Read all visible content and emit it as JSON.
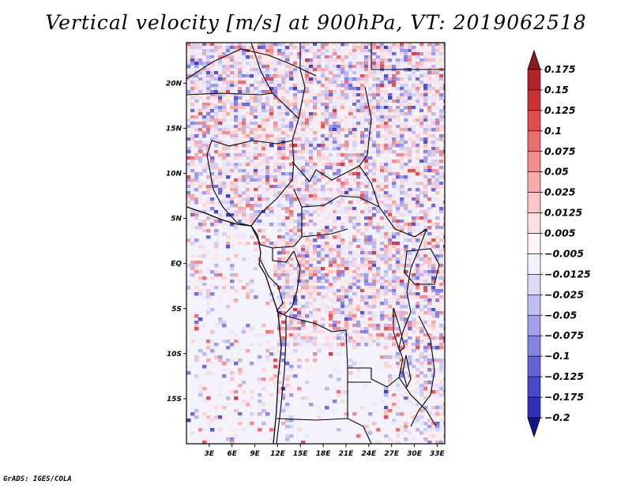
{
  "title": "Vertical velocity [m/s] at 900hPa, VT: 2019062518",
  "credit": "GrADS: IGES/COLA",
  "map": {
    "projection": "latlon",
    "lon_range": [
      0,
      34
    ],
    "lat_range": [
      -20,
      24.5
    ],
    "lat_ticks": [
      {
        "value": 20,
        "label": "20N"
      },
      {
        "value": 15,
        "label": "15N"
      },
      {
        "value": 10,
        "label": "10N"
      },
      {
        "value": 5,
        "label": "5N"
      },
      {
        "value": 0,
        "label": "EQ"
      },
      {
        "value": -5,
        "label": "5S"
      },
      {
        "value": -10,
        "label": "10S"
      },
      {
        "value": -15,
        "label": "15S"
      }
    ],
    "lon_ticks": [
      {
        "value": 3,
        "label": "3E"
      },
      {
        "value": 6,
        "label": "6E"
      },
      {
        "value": 9,
        "label": "9E"
      },
      {
        "value": 12,
        "label": "12E"
      },
      {
        "value": 15,
        "label": "15E"
      },
      {
        "value": 18,
        "label": "18E"
      },
      {
        "value": 21,
        "label": "21E"
      },
      {
        "value": 24,
        "label": "24E"
      },
      {
        "value": 27,
        "label": "27E"
      },
      {
        "value": 30,
        "label": "30E"
      },
      {
        "value": 33,
        "label": "33E"
      }
    ]
  },
  "colorbar": {
    "levels": [
      {
        "label": "0.175",
        "color": "#a51e24"
      },
      {
        "label": "0.15",
        "color": "#c0272d"
      },
      {
        "label": "0.125",
        "color": "#d83c3c"
      },
      {
        "label": "0.1",
        "color": "#e65d5d"
      },
      {
        "label": "0.075",
        "color": "#ef7e7e"
      },
      {
        "label": "0.05",
        "color": "#f39c9c"
      },
      {
        "label": "0.025",
        "color": "#f8baba"
      },
      {
        "label": "0.0125",
        "color": "#fbd4d4"
      },
      {
        "label": "0.005",
        "color": "#fde9e9"
      },
      {
        "label": "−0.005",
        "color": "#ffffff"
      },
      {
        "label": "−0.0125",
        "color": "#e6e6fb"
      },
      {
        "label": "−0.025",
        "color": "#ccccf5"
      },
      {
        "label": "−0.05",
        "color": "#b0b0ef"
      },
      {
        "label": "−0.075",
        "color": "#9191e6"
      },
      {
        "label": "−0.1",
        "color": "#7272dc"
      },
      {
        "label": "−0.125",
        "color": "#5656d2"
      },
      {
        "label": "−0.175",
        "color": "#3b3bc4"
      },
      {
        "label": "−0.2",
        "color": "#2424b0"
      }
    ],
    "top_arrow_color": "#8f1818",
    "bottom_arrow_color": "#14148c"
  }
}
